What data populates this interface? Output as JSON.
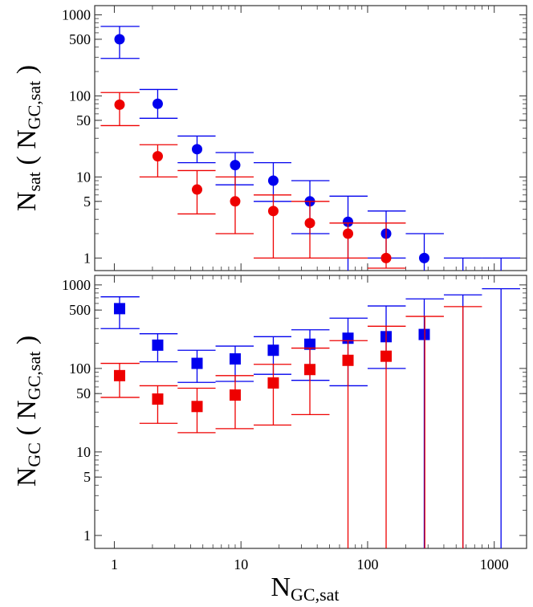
{
  "chart_data": [
    {
      "type": "scatter",
      "panel": "top",
      "ylabel_main": "N",
      "ylabel_sub": "sat",
      "ylabel_paren_open": "(",
      "ylabel_inner_main": "N",
      "ylabel_inner_sub": "GC,sat",
      "ylabel_paren_close": ")",
      "yscale": "log",
      "xscale": "log",
      "xlim": [
        0.7,
        1800
      ],
      "ylim": [
        0.7,
        1300
      ],
      "yticks": [
        {
          "value": 1,
          "label": "1"
        },
        {
          "value": 5,
          "label": "5"
        },
        {
          "value": 10,
          "label": "10"
        },
        {
          "value": 50,
          "label": "50"
        },
        {
          "value": 100,
          "label": "100"
        },
        {
          "value": 500,
          "label": "500"
        },
        {
          "value": 1000,
          "label": "1000"
        }
      ],
      "series": [
        {
          "name": "blue",
          "color": "#0000ee",
          "marker": "circle",
          "points": [
            {
              "x": 1.1,
              "y": 500,
              "lo": 290,
              "hi": 720,
              "xerr": [
                0.78,
                1.58
              ]
            },
            {
              "x": 2.2,
              "y": 80,
              "lo": 53,
              "hi": 120,
              "xerr": [
                1.58,
                3.16
              ]
            },
            {
              "x": 4.5,
              "y": 22,
              "lo": 15,
              "hi": 32,
              "xerr": [
                3.16,
                6.3
              ]
            },
            {
              "x": 9,
              "y": 14,
              "lo": 8,
              "hi": 20,
              "xerr": [
                6.3,
                12.6
              ]
            },
            {
              "x": 18,
              "y": 9,
              "lo": 5,
              "hi": 15,
              "xerr": [
                12.6,
                25
              ]
            },
            {
              "x": 35,
              "y": 5,
              "lo": 2,
              "hi": 9,
              "xerr": [
                25,
                50
              ]
            },
            {
              "x": 70,
              "y": 2.8,
              "lo": 0.7,
              "hi": 5.8,
              "xerr": [
                50,
                100
              ]
            },
            {
              "x": 140,
              "y": 2,
              "lo": 1,
              "hi": 3.8,
              "xerr": [
                100,
                200
              ]
            },
            {
              "x": 280,
              "y": 1,
              "lo": 0.7,
              "hi": 2,
              "xerr": [
                200,
                400
              ]
            },
            {
              "x": null,
              "y": null,
              "lo": 0.7,
              "hi": 1,
              "xerr": [
                400,
                800
              ]
            },
            {
              "x": null,
              "y": null,
              "lo": 0.7,
              "hi": 1,
              "xerr": [
                800,
                1600
              ]
            }
          ]
        },
        {
          "name": "red",
          "color": "#ee0000",
          "marker": "circle",
          "points": [
            {
              "x": 1.1,
              "y": 78,
              "lo": 43,
              "hi": 110,
              "xerr": [
                0.78,
                1.58
              ]
            },
            {
              "x": 2.2,
              "y": 18,
              "lo": 10,
              "hi": 25,
              "xerr": [
                1.58,
                3.16
              ]
            },
            {
              "x": 4.5,
              "y": 7,
              "lo": 3.5,
              "hi": 12,
              "xerr": [
                3.16,
                6.3
              ]
            },
            {
              "x": 9,
              "y": 5,
              "lo": 2,
              "hi": 10,
              "xerr": [
                6.3,
                12.6
              ]
            },
            {
              "x": 18,
              "y": 3.8,
              "lo": 1,
              "hi": 6,
              "xerr": [
                12.6,
                25
              ]
            },
            {
              "x": 35,
              "y": 2.7,
              "lo": 1,
              "hi": 5,
              "xerr": [
                25,
                50
              ]
            },
            {
              "x": 70,
              "y": 2,
              "lo": 1,
              "hi": 2.7,
              "xerr": [
                50,
                100
              ]
            },
            {
              "x": 140,
              "y": 1,
              "lo": 0.75,
              "hi": 2.7,
              "xerr": [
                100,
                200
              ]
            }
          ]
        }
      ]
    },
    {
      "type": "scatter",
      "panel": "bottom",
      "ylabel_main": "N",
      "ylabel_sub": "GC",
      "ylabel_paren_open": "(",
      "ylabel_inner_main": "N",
      "ylabel_inner_sub": "GC,sat",
      "ylabel_paren_close": ")",
      "yscale": "log",
      "xscale": "log",
      "xlim": [
        0.7,
        1800
      ],
      "ylim": [
        0.7,
        1300
      ],
      "yticks": [
        {
          "value": 1,
          "label": "1"
        },
        {
          "value": 5,
          "label": "5"
        },
        {
          "value": 10,
          "label": "10"
        },
        {
          "value": 50,
          "label": "50"
        },
        {
          "value": 100,
          "label": "100"
        },
        {
          "value": 500,
          "label": "500"
        },
        {
          "value": 1000,
          "label": "1000"
        }
      ],
      "xticks": [
        {
          "value": 1,
          "label": "1"
        },
        {
          "value": 10,
          "label": "10"
        },
        {
          "value": 100,
          "label": "100"
        },
        {
          "value": 1000,
          "label": "1000"
        }
      ],
      "xlabel_main": "N",
      "xlabel_sub": "GC,sat",
      "series": [
        {
          "name": "blue",
          "color": "#0000ee",
          "marker": "square",
          "points": [
            {
              "x": 1.1,
              "y": 520,
              "lo": 300,
              "hi": 720,
              "xerr": [
                0.78,
                1.58
              ]
            },
            {
              "x": 2.2,
              "y": 190,
              "lo": 120,
              "hi": 260,
              "xerr": [
                1.58,
                3.16
              ]
            },
            {
              "x": 4.5,
              "y": 115,
              "lo": 68,
              "hi": 165,
              "xerr": [
                3.16,
                6.3
              ]
            },
            {
              "x": 9,
              "y": 130,
              "lo": 70,
              "hi": 185,
              "xerr": [
                6.3,
                12.6
              ]
            },
            {
              "x": 18,
              "y": 165,
              "lo": 85,
              "hi": 240,
              "xerr": [
                12.6,
                25
              ]
            },
            {
              "x": 35,
              "y": 195,
              "lo": 72,
              "hi": 290,
              "xerr": [
                25,
                50
              ]
            },
            {
              "x": 70,
              "y": 230,
              "lo": 62,
              "hi": 400,
              "xerr": [
                50,
                100
              ]
            },
            {
              "x": 140,
              "y": 240,
              "lo": 100,
              "hi": 560,
              "xerr": [
                100,
                200
              ]
            },
            {
              "x": 280,
              "y": 255,
              "lo": 0.7,
              "hi": 680,
              "xerr": [
                200,
                400
              ]
            },
            {
              "x": null,
              "y": null,
              "lo": 0.7,
              "hi": 760,
              "xerr": [
                400,
                800
              ]
            },
            {
              "x": null,
              "y": null,
              "lo": 0.7,
              "hi": 900,
              "xerr": [
                800,
                1600
              ]
            }
          ]
        },
        {
          "name": "red",
          "color": "#ee0000",
          "marker": "square",
          "points": [
            {
              "x": 1.1,
              "y": 82,
              "lo": 45,
              "hi": 115,
              "xerr": [
                0.78,
                1.58
              ]
            },
            {
              "x": 2.2,
              "y": 43,
              "lo": 22,
              "hi": 62,
              "xerr": [
                1.58,
                3.16
              ]
            },
            {
              "x": 4.5,
              "y": 35,
              "lo": 17,
              "hi": 58,
              "xerr": [
                3.16,
                6.3
              ]
            },
            {
              "x": 9,
              "y": 48,
              "lo": 19,
              "hi": 82,
              "xerr": [
                6.3,
                12.6
              ]
            },
            {
              "x": 18,
              "y": 67,
              "lo": 21,
              "hi": 112,
              "xerr": [
                12.6,
                25
              ]
            },
            {
              "x": 35,
              "y": 97,
              "lo": 28,
              "hi": 175,
              "xerr": [
                25,
                50
              ]
            },
            {
              "x": 70,
              "y": 125,
              "lo": 0.7,
              "hi": 215,
              "xerr": [
                50,
                100
              ]
            },
            {
              "x": 140,
              "y": 140,
              "lo": 0.7,
              "hi": 320,
              "xerr": [
                100,
                200
              ]
            },
            {
              "x": null,
              "y": null,
              "lo": 0.7,
              "hi": 420,
              "xerr": [
                200,
                400
              ]
            },
            {
              "x": null,
              "y": null,
              "lo": 0.7,
              "hi": 550,
              "xerr": [
                400,
                800
              ]
            }
          ]
        }
      ]
    }
  ]
}
